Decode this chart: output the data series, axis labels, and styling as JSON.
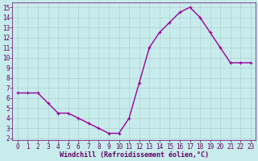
{
  "x": [
    0,
    1,
    2,
    3,
    4,
    5,
    6,
    7,
    8,
    9,
    10,
    11,
    12,
    13,
    14,
    15,
    16,
    17,
    18,
    19,
    20,
    21,
    22,
    23
  ],
  "y": [
    6.5,
    6.5,
    6.5,
    5.5,
    4.5,
    4.5,
    4.0,
    3.5,
    3.0,
    2.5,
    2.5,
    4.0,
    7.5,
    11.0,
    12.5,
    13.5,
    14.5,
    15.0,
    14.0,
    12.5,
    11.0,
    9.5,
    9.5,
    9.5
  ],
  "line_color": "#990099",
  "marker": "+",
  "marker_size": 3,
  "marker_edge_width": 0.8,
  "background_color": "#c8ecec",
  "grid_color": "#b0d0d0",
  "xlabel": "Windchill (Refroidissement éolien,°C)",
  "ylabel": "",
  "ylim": [
    1.8,
    15.5
  ],
  "xlim": [
    -0.5,
    23.5
  ],
  "yticks": [
    2,
    3,
    4,
    5,
    6,
    7,
    8,
    9,
    10,
    11,
    12,
    13,
    14,
    15
  ],
  "xticks": [
    0,
    1,
    2,
    3,
    4,
    5,
    6,
    7,
    8,
    9,
    10,
    11,
    12,
    13,
    14,
    15,
    16,
    17,
    18,
    19,
    20,
    21,
    22,
    23
  ],
  "tick_color": "#660066",
  "label_color": "#660066",
  "font_size": 5.5,
  "xlabel_font_size": 6,
  "linewidth": 1.0
}
